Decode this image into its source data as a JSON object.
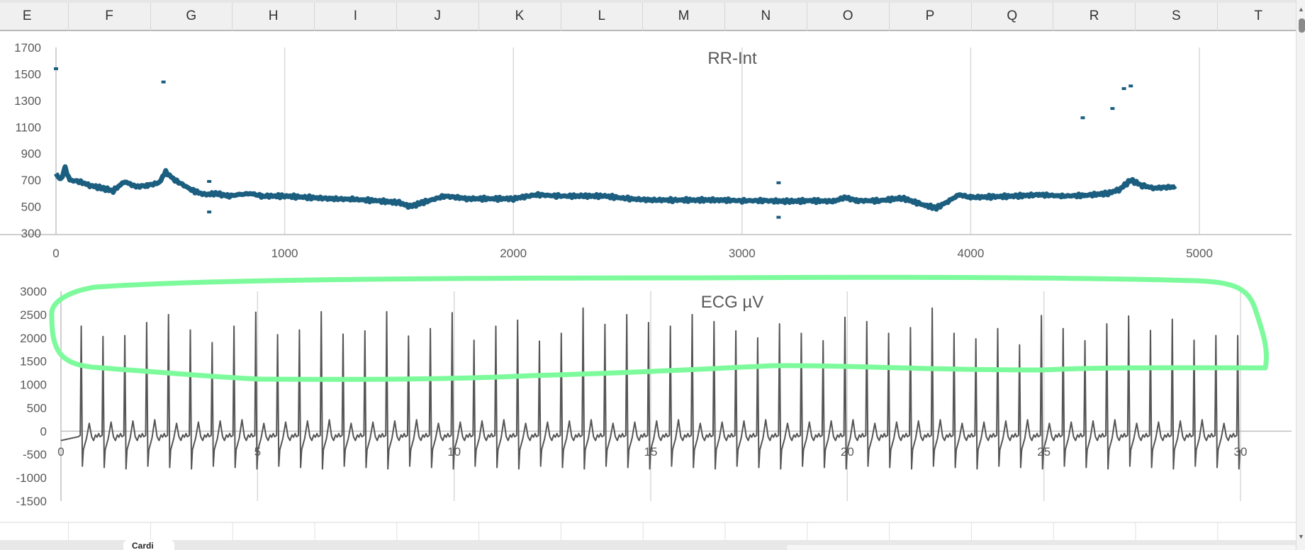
{
  "sheet": {
    "columns": [
      "E",
      "F",
      "G",
      "H",
      "I",
      "J",
      "K",
      "L",
      "M",
      "N",
      "O",
      "P",
      "Q",
      "R",
      "S",
      "T"
    ],
    "active_tab": "Cardi"
  },
  "colors": {
    "rr_series": "#1b5e7f",
    "ecg_series": "#555555",
    "annotation": "#7dfb9c",
    "grid": "#d9d9d9"
  },
  "chart_data": [
    {
      "type": "scatter",
      "title": "RR-Int",
      "xlim": [
        0,
        5400
      ],
      "ylim": [
        300,
        1700
      ],
      "x_ticks": [
        0,
        1000,
        2000,
        3000,
        4000,
        5000
      ],
      "y_ticks": [
        300,
        500,
        700,
        900,
        1100,
        1300,
        1500,
        1700
      ],
      "grid": "vertical",
      "series_trend": [
        [
          0,
          750
        ],
        [
          20,
          700
        ],
        [
          40,
          790
        ],
        [
          60,
          700
        ],
        [
          100,
          690
        ],
        [
          150,
          660
        ],
        [
          200,
          640
        ],
        [
          250,
          620
        ],
        [
          300,
          690
        ],
        [
          350,
          650
        ],
        [
          400,
          660
        ],
        [
          450,
          680
        ],
        [
          480,
          760
        ],
        [
          520,
          700
        ],
        [
          560,
          660
        ],
        [
          600,
          620
        ],
        [
          650,
          590
        ],
        [
          700,
          600
        ],
        [
          750,
          580
        ],
        [
          800,
          590
        ],
        [
          850,
          600
        ],
        [
          900,
          580
        ],
        [
          1000,
          580
        ],
        [
          1100,
          570
        ],
        [
          1200,
          560
        ],
        [
          1300,
          555
        ],
        [
          1400,
          545
        ],
        [
          1500,
          530
        ],
        [
          1550,
          500
        ],
        [
          1600,
          530
        ],
        [
          1700,
          580
        ],
        [
          1800,
          560
        ],
        [
          1900,
          560
        ],
        [
          2000,
          560
        ],
        [
          2100,
          590
        ],
        [
          2200,
          580
        ],
        [
          2300,
          580
        ],
        [
          2400,
          580
        ],
        [
          2500,
          560
        ],
        [
          2600,
          550
        ],
        [
          2700,
          550
        ],
        [
          2800,
          550
        ],
        [
          2900,
          550
        ],
        [
          3000,
          545
        ],
        [
          3100,
          545
        ],
        [
          3200,
          540
        ],
        [
          3300,
          545
        ],
        [
          3400,
          540
        ],
        [
          3450,
          570
        ],
        [
          3500,
          545
        ],
        [
          3600,
          545
        ],
        [
          3700,
          565
        ],
        [
          3800,
          510
        ],
        [
          3850,
          490
        ],
        [
          3900,
          540
        ],
        [
          3950,
          590
        ],
        [
          4000,
          570
        ],
        [
          4100,
          575
        ],
        [
          4200,
          580
        ],
        [
          4300,
          590
        ],
        [
          4400,
          580
        ],
        [
          4500,
          585
        ],
        [
          4600,
          600
        ],
        [
          4650,
          630
        ],
        [
          4700,
          700
        ],
        [
          4750,
          660
        ],
        [
          4800,
          640
        ],
        [
          4900,
          650
        ]
      ],
      "outliers": [
        [
          0,
          1540
        ],
        [
          470,
          1440
        ],
        [
          670,
          690
        ],
        [
          670,
          460
        ],
        [
          3160,
          680
        ],
        [
          3160,
          420
        ],
        [
          4490,
          1170
        ],
        [
          4620,
          1240
        ],
        [
          4670,
          1390
        ],
        [
          4700,
          1410
        ]
      ]
    },
    {
      "type": "line",
      "title": "ECG µV",
      "xlim": [
        0,
        30
      ],
      "ylim": [
        -1500,
        3000
      ],
      "x_ticks": [
        0,
        5,
        10,
        15,
        20,
        25,
        30
      ],
      "y_ticks": [
        3000,
        2500,
        2000,
        1500,
        1000,
        500,
        0,
        -500,
        -1000,
        -1500
      ],
      "grid": "vertical",
      "first_beat_s": 0.52,
      "rr_s": 0.555,
      "r_peaks": [
        2250,
        2030,
        2050,
        2330,
        2500,
        2170,
        1900,
        2250,
        2550,
        2070,
        2170,
        2560,
        2080,
        2150,
        2560,
        2040,
        2200,
        2540,
        1950,
        2250,
        2380,
        1930,
        2100,
        2640,
        2290,
        2500,
        2330,
        2250,
        2500,
        2350,
        2150,
        2000,
        2300,
        2100,
        1940,
        2440,
        2350,
        2100,
        2220,
        2640,
        2100,
        1980,
        2200,
        1850,
        2480,
        2200,
        1940,
        2300,
        2470,
        2160,
        2400,
        1950,
        2050,
        2050
      ],
      "s_trough": -750
    }
  ]
}
